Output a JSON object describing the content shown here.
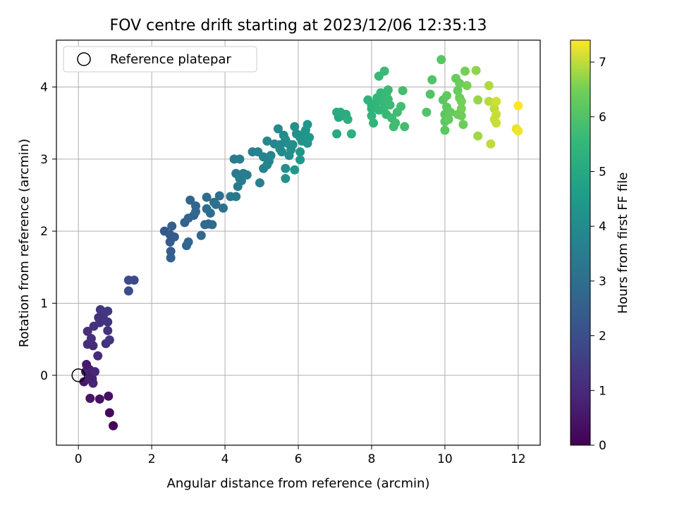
{
  "chart_data": {
    "type": "scatter",
    "title": "FOV centre drift starting at 2023/12/06 12:35:13",
    "xlabel": "Angular distance from reference (arcmin)",
    "ylabel": "Rotation from reference (arcmin)",
    "xlim": [
      -0.6,
      12.6
    ],
    "ylim": [
      -0.97,
      4.65
    ],
    "x_ticks": [
      0,
      2,
      4,
      6,
      8,
      10,
      12
    ],
    "x_tick_labels": [
      "0",
      "2",
      "4",
      "6",
      "8",
      "10",
      "12"
    ],
    "y_ticks": [
      0,
      1,
      2,
      3,
      4
    ],
    "y_tick_labels": [
      "0",
      "1",
      "2",
      "3",
      "4"
    ],
    "grid": true,
    "legend": {
      "location": "upper-left",
      "entries": [
        "Reference platepar"
      ]
    },
    "colorbar": {
      "label": "Hours from first FF file",
      "range": [
        0,
        7.4
      ],
      "colormap": "viridis",
      "ticks": [
        0,
        1,
        2,
        3,
        4,
        5,
        6,
        7
      ],
      "tick_labels": [
        "0",
        "1",
        "2",
        "3",
        "4",
        "5",
        "6",
        "7"
      ]
    },
    "reference_point": {
      "x": 0,
      "y": 0
    },
    "series": [
      {
        "points": [
          [
            0.15,
            -0.09,
            0.5
          ],
          [
            0.2,
            0.05,
            0.6
          ],
          [
            0.25,
            0.1,
            0.7
          ],
          [
            0.3,
            0.08,
            0.8
          ],
          [
            0.35,
            0.0,
            0.7
          ],
          [
            0.38,
            -0.05,
            0.8
          ],
          [
            0.4,
            -0.11,
            0.9
          ],
          [
            0.45,
            0.05,
            0.9
          ],
          [
            0.22,
            0.15,
            0.6
          ],
          [
            0.3,
            -0.05,
            0.75
          ],
          [
            0.32,
            -0.32,
            0.5
          ],
          [
            0.58,
            -0.33,
            0.4
          ],
          [
            0.82,
            -0.29,
            0.3
          ],
          [
            0.85,
            -0.52,
            0.2
          ],
          [
            0.95,
            -0.7,
            0.05
          ],
          [
            0.53,
            0.27,
            1.0
          ],
          [
            0.4,
            0.41,
            1.05
          ],
          [
            0.25,
            0.43,
            1.1
          ],
          [
            0.35,
            0.51,
            1.1
          ],
          [
            0.25,
            0.61,
            1.15
          ],
          [
            0.42,
            0.68,
            1.2
          ],
          [
            0.58,
            0.73,
            1.25
          ],
          [
            0.68,
            0.83,
            1.3
          ],
          [
            0.6,
            0.91,
            1.35
          ],
          [
            0.8,
            0.89,
            1.4
          ],
          [
            0.8,
            0.74,
            1.3
          ],
          [
            0.8,
            0.62,
            1.25
          ],
          [
            0.75,
            0.44,
            1.2
          ],
          [
            0.85,
            0.49,
            1.3
          ],
          [
            0.55,
            0.8,
            1.2
          ],
          [
            1.37,
            1.32,
            1.9
          ],
          [
            1.52,
            1.32,
            1.9
          ],
          [
            1.37,
            1.17,
            1.95
          ],
          [
            2.35,
            2.0,
            2.3
          ],
          [
            2.5,
            1.85,
            2.4
          ],
          [
            2.52,
            1.72,
            2.45
          ],
          [
            2.52,
            1.63,
            2.5
          ],
          [
            2.62,
            1.92,
            2.4
          ],
          [
            2.5,
            1.95,
            2.35
          ],
          [
            2.55,
            2.07,
            2.5
          ],
          [
            2.9,
            2.12,
            2.6
          ],
          [
            3.0,
            2.18,
            2.65
          ],
          [
            3.15,
            2.22,
            2.7
          ],
          [
            3.05,
            2.43,
            2.65
          ],
          [
            3.2,
            2.35,
            2.75
          ],
          [
            3.2,
            2.27,
            2.8
          ],
          [
            2.95,
            1.8,
            2.7
          ],
          [
            3.0,
            1.85,
            2.75
          ],
          [
            3.35,
            1.94,
            2.8
          ],
          [
            3.45,
            2.09,
            2.85
          ],
          [
            3.55,
            2.1,
            2.85
          ],
          [
            3.65,
            2.09,
            2.9
          ],
          [
            3.5,
            2.31,
            2.9
          ],
          [
            3.6,
            2.25,
            2.95
          ],
          [
            3.5,
            2.47,
            2.95
          ],
          [
            3.7,
            2.4,
            3.0
          ],
          [
            3.85,
            2.49,
            3.0
          ],
          [
            3.95,
            2.32,
            3.05
          ],
          [
            3.75,
            2.37,
            3.05
          ],
          [
            4.15,
            2.48,
            3.3
          ],
          [
            4.3,
            2.48,
            3.35
          ],
          [
            4.35,
            2.62,
            3.4
          ],
          [
            4.4,
            2.73,
            3.4
          ],
          [
            4.5,
            2.8,
            3.45
          ],
          [
            4.45,
            2.7,
            3.5
          ],
          [
            4.3,
            2.8,
            3.45
          ],
          [
            4.25,
            3.0,
            3.5
          ],
          [
            4.4,
            3.0,
            3.55
          ],
          [
            4.55,
            2.78,
            3.55
          ],
          [
            4.6,
            2.78,
            3.6
          ],
          [
            4.75,
            3.1,
            3.6
          ],
          [
            4.9,
            3.1,
            3.65
          ],
          [
            4.95,
            2.67,
            3.65
          ],
          [
            5.05,
            2.87,
            3.7
          ],
          [
            5.05,
            3.03,
            3.7
          ],
          [
            5.15,
            2.92,
            3.75
          ],
          [
            5.2,
            2.97,
            3.8
          ],
          [
            5.25,
            3.05,
            3.8
          ],
          [
            5.15,
            3.25,
            3.85
          ],
          [
            5.35,
            3.21,
            3.9
          ],
          [
            5.45,
            3.42,
            3.95
          ],
          [
            5.5,
            3.2,
            3.9
          ],
          [
            5.5,
            3.14,
            3.95
          ],
          [
            5.55,
            3.1,
            4.0
          ],
          [
            5.6,
            3.33,
            4.0
          ],
          [
            5.65,
            3.27,
            4.05
          ],
          [
            5.7,
            3.22,
            4.05
          ],
          [
            5.8,
            3.13,
            4.1
          ],
          [
            5.85,
            3.2,
            4.1
          ],
          [
            5.65,
            2.87,
            4.15
          ],
          [
            5.65,
            2.73,
            4.15
          ],
          [
            5.75,
            3.05,
            4.1
          ],
          [
            5.9,
            3.45,
            4.2
          ],
          [
            5.95,
            3.35,
            4.2
          ],
          [
            6.05,
            3.3,
            4.25
          ],
          [
            6.15,
            3.35,
            4.25
          ],
          [
            6.1,
            3.25,
            4.3
          ],
          [
            6.2,
            3.4,
            4.3
          ],
          [
            6.25,
            3.48,
            4.35
          ],
          [
            6.25,
            3.22,
            4.3
          ],
          [
            6.05,
            3.1,
            4.35
          ],
          [
            6.05,
            2.99,
            4.4
          ],
          [
            5.9,
            2.85,
            4.4
          ],
          [
            6.3,
            3.3,
            4.45
          ],
          [
            7.05,
            3.35,
            5.0
          ],
          [
            7.1,
            3.58,
            5.05
          ],
          [
            7.15,
            3.65,
            5.1
          ],
          [
            7.2,
            3.6,
            5.1
          ],
          [
            7.3,
            3.62,
            5.15
          ],
          [
            7.35,
            3.55,
            5.2
          ],
          [
            7.45,
            3.35,
            5.25
          ],
          [
            7.05,
            3.65,
            5.1
          ],
          [
            7.9,
            3.82,
            5.35
          ],
          [
            8.0,
            3.7,
            5.4
          ],
          [
            8.0,
            3.6,
            5.4
          ],
          [
            8.05,
            3.5,
            5.45
          ],
          [
            8.1,
            3.77,
            5.45
          ],
          [
            8.15,
            3.85,
            5.5
          ],
          [
            8.2,
            3.68,
            5.5
          ],
          [
            8.25,
            3.92,
            5.55
          ],
          [
            8.3,
            3.8,
            5.55
          ],
          [
            8.35,
            3.72,
            5.6
          ],
          [
            8.4,
            3.9,
            5.6
          ],
          [
            8.4,
            3.62,
            5.6
          ],
          [
            8.45,
            3.83,
            5.65
          ],
          [
            8.45,
            3.96,
            5.65
          ],
          [
            8.55,
            3.57,
            5.7
          ],
          [
            8.6,
            3.45,
            5.7
          ],
          [
            8.65,
            3.5,
            5.75
          ],
          [
            8.7,
            3.65,
            5.75
          ],
          [
            8.8,
            3.73,
            5.8
          ],
          [
            8.85,
            3.95,
            5.8
          ],
          [
            8.9,
            3.45,
            5.8
          ],
          [
            8.2,
            4.15,
            5.6
          ],
          [
            8.35,
            4.22,
            5.65
          ],
          [
            8.0,
            3.75,
            5.4
          ],
          [
            8.5,
            3.75,
            5.65
          ],
          [
            9.5,
            3.65,
            6.0
          ],
          [
            9.6,
            3.9,
            6.05
          ],
          [
            9.65,
            4.1,
            6.05
          ],
          [
            9.9,
            4.38,
            6.1
          ],
          [
            9.95,
            3.82,
            6.15
          ],
          [
            10.0,
            3.62,
            6.15
          ],
          [
            10.0,
            3.52,
            6.2
          ],
          [
            10.0,
            3.4,
            6.2
          ],
          [
            10.05,
            3.88,
            6.25
          ],
          [
            10.05,
            3.72,
            6.25
          ],
          [
            10.1,
            3.55,
            6.3
          ],
          [
            10.15,
            3.65,
            6.3
          ],
          [
            10.3,
            4.12,
            6.35
          ],
          [
            10.35,
            3.95,
            6.35
          ],
          [
            10.4,
            4.05,
            6.4
          ],
          [
            10.4,
            3.85,
            6.4
          ],
          [
            10.45,
            3.6,
            6.45
          ],
          [
            10.5,
            3.48,
            6.45
          ],
          [
            10.45,
            3.7,
            6.5
          ],
          [
            10.55,
            4.22,
            6.5
          ],
          [
            10.6,
            4.02,
            6.55
          ],
          [
            10.45,
            3.8,
            6.5
          ],
          [
            10.35,
            3.62,
            6.45
          ],
          [
            10.85,
            4.23,
            6.7
          ],
          [
            10.9,
            3.82,
            6.75
          ],
          [
            10.9,
            3.32,
            6.8
          ],
          [
            11.2,
            4.02,
            6.9
          ],
          [
            11.2,
            3.8,
            6.95
          ],
          [
            11.25,
            3.21,
            7.0
          ],
          [
            11.35,
            3.7,
            7.0
          ],
          [
            11.4,
            3.62,
            7.05
          ],
          [
            11.4,
            3.5,
            7.05
          ],
          [
            11.4,
            3.8,
            7.1
          ],
          [
            11.35,
            3.55,
            7.05
          ],
          [
            11.95,
            3.42,
            7.25
          ],
          [
            12.0,
            3.39,
            7.3
          ],
          [
            12.0,
            3.74,
            7.4
          ]
        ]
      }
    ]
  }
}
